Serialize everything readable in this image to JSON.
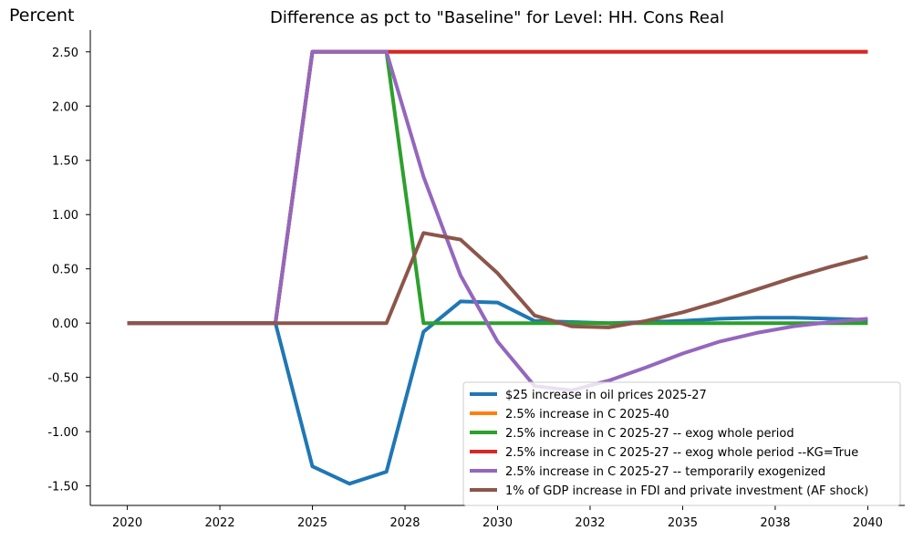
{
  "chart_data": {
    "type": "line",
    "title": "Difference as pct to \"Baseline\" for Level: HH. Cons Real",
    "ylabel": "Percent",
    "xlabel": "",
    "xlim": [
      2019.0,
      2041.0
    ],
    "ylim": [
      -1.68,
      2.7
    ],
    "grid": false,
    "legend_position": "bottom-right",
    "x": [
      2020,
      2021,
      2022,
      2023,
      2024,
      2025,
      2026,
      2027,
      2028,
      2029,
      2030,
      2031,
      2032,
      2033,
      2034,
      2035,
      2036,
      2037,
      2038,
      2039,
      2040
    ],
    "x_tick_values": [
      2020,
      2022.5,
      2025,
      2027.5,
      2030,
      2032.5,
      2035,
      2037.5,
      2040
    ],
    "x_tick_labels": [
      "2020",
      "2022",
      "2025",
      "2028",
      "2030",
      "2032",
      "2035",
      "2038",
      "2040"
    ],
    "y_tick_values": [
      -1.5,
      -1.0,
      -0.5,
      0.0,
      0.5,
      1.0,
      1.5,
      2.0,
      2.5
    ],
    "y_tick_labels": [
      "-1.50",
      "-1.00",
      "-0.50",
      "0.00",
      "0.50",
      "1.00",
      "1.50",
      "2.00",
      "2.50"
    ],
    "series": [
      {
        "name": "$25 increase in oil prices 2025-27",
        "color": "#1f77b4",
        "values": [
          0,
          0,
          0,
          0,
          0,
          -1.32,
          -1.48,
          -1.37,
          -0.08,
          0.2,
          0.19,
          0.02,
          0.01,
          0.0,
          0.01,
          0.02,
          0.04,
          0.05,
          0.05,
          0.04,
          0.03
        ]
      },
      {
        "name": "2.5% increase in C 2025-40",
        "color": "#ff7f0e",
        "values": [
          0,
          0,
          0,
          0,
          0,
          2.5,
          2.5,
          2.5,
          2.5,
          2.5,
          2.5,
          2.5,
          2.5,
          2.5,
          2.5,
          2.5,
          2.5,
          2.5,
          2.5,
          2.5,
          2.5
        ]
      },
      {
        "name": "2.5% increase in C 2025-27 -- exog whole period",
        "color": "#2ca02c",
        "values": [
          0,
          0,
          0,
          0,
          0,
          2.5,
          2.5,
          2.5,
          0,
          0,
          0,
          0,
          0,
          0,
          0,
          0,
          0,
          0,
          0,
          0,
          0
        ]
      },
      {
        "name": "2.5% increase in C 2025-27 -- exog whole period --KG=True",
        "color": "#d62728",
        "values": [
          0,
          0,
          0,
          0,
          0,
          2.5,
          2.5,
          2.5,
          2.5,
          2.5,
          2.5,
          2.5,
          2.5,
          2.5,
          2.5,
          2.5,
          2.5,
          2.5,
          2.5,
          2.5,
          2.5
        ]
      },
      {
        "name": "2.5% increase in C 2025-27 -- temporarily exogenized",
        "color": "#9467bd",
        "values": [
          0,
          0,
          0,
          0,
          0,
          2.5,
          2.5,
          2.5,
          1.35,
          0.44,
          -0.17,
          -0.58,
          -0.62,
          -0.53,
          -0.41,
          -0.28,
          -0.17,
          -0.09,
          -0.03,
          0.01,
          0.04
        ]
      },
      {
        "name": "1% of GDP increase in FDI and private investment (AF shock)",
        "color": "#8c564b",
        "values": [
          0,
          0,
          0,
          0,
          0,
          0,
          0,
          0,
          0.83,
          0.77,
          0.46,
          0.07,
          -0.03,
          -0.04,
          0.02,
          0.1,
          0.2,
          0.31,
          0.42,
          0.52,
          0.61
        ]
      }
    ]
  }
}
